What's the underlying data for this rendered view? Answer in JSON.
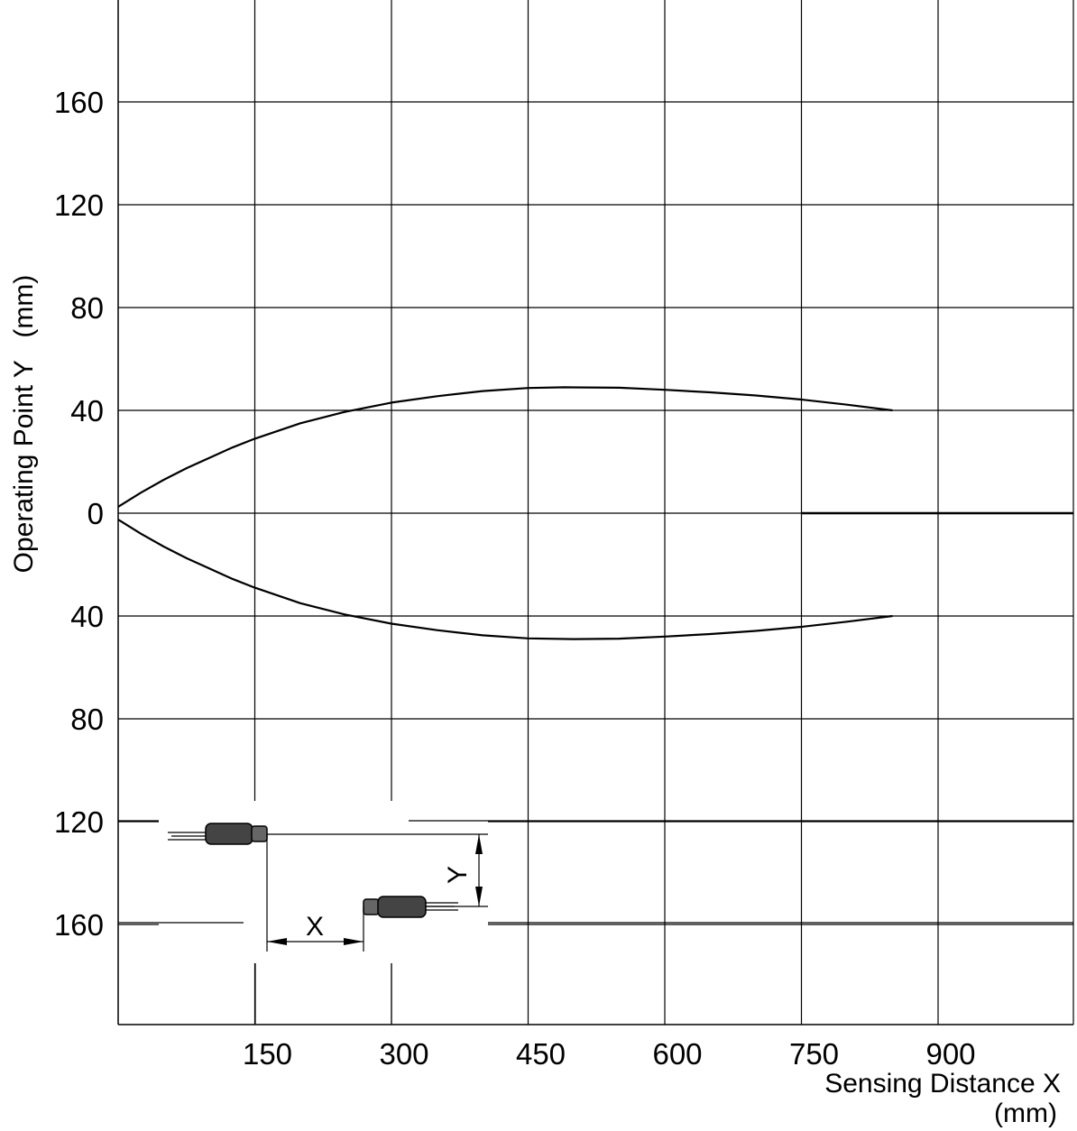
{
  "chart_data": {
    "type": "line",
    "title": "",
    "xlabel_line1": "Sensing Distance X",
    "xlabel_line2": "(mm)",
    "ylabel": "Operating Point Y   (mm)",
    "xlim": [
      0,
      1050
    ],
    "ylim": [
      -200,
      200
    ],
    "x_ticks": [
      {
        "value": 150,
        "label": "150"
      },
      {
        "value": 300,
        "label": "300"
      },
      {
        "value": 450,
        "label": "450"
      },
      {
        "value": 600,
        "label": "600"
      },
      {
        "value": 750,
        "label": "750"
      },
      {
        "value": 900,
        "label": "900"
      }
    ],
    "y_ticks": [
      {
        "value": 160,
        "label": "160"
      },
      {
        "value": 120,
        "label": "120"
      },
      {
        "value": 80,
        "label": "80"
      },
      {
        "value": 40,
        "label": "40"
      },
      {
        "value": 0,
        "label": "0"
      },
      {
        "value": -40,
        "label": "40"
      },
      {
        "value": -80,
        "label": "80"
      },
      {
        "value": -120,
        "label": "120"
      },
      {
        "value": -160,
        "label": "160"
      }
    ],
    "grid": true,
    "series": [
      {
        "x": [
          0,
          25,
          50,
          75,
          100,
          125,
          150,
          200,
          250,
          300,
          350,
          400,
          450,
          490,
          550,
          600,
          650,
          700,
          750,
          800,
          850
        ],
        "y": [
          2.5,
          8,
          13,
          17.5,
          21.5,
          25.5,
          29,
          35,
          39.5,
          43,
          45.5,
          47.5,
          48.7,
          49,
          48.8,
          48,
          47,
          45.8,
          44.2,
          42.2,
          40
        ]
      },
      {
        "x": [
          0,
          25,
          50,
          75,
          100,
          125,
          150,
          200,
          250,
          300,
          350,
          400,
          450,
          500,
          550,
          600,
          650,
          700,
          750,
          800,
          850
        ],
        "y": [
          -2.5,
          -8,
          -13,
          -17.5,
          -21.5,
          -25.5,
          -29,
          -35,
          -39.5,
          -43,
          -45.5,
          -47.5,
          -48.7,
          -49,
          -48.8,
          -48,
          -47,
          -45.8,
          -44.2,
          -42.2,
          -40
        ]
      }
    ],
    "inset": {
      "description_labels": {
        "x": "X",
        "y": "Y"
      }
    }
  }
}
